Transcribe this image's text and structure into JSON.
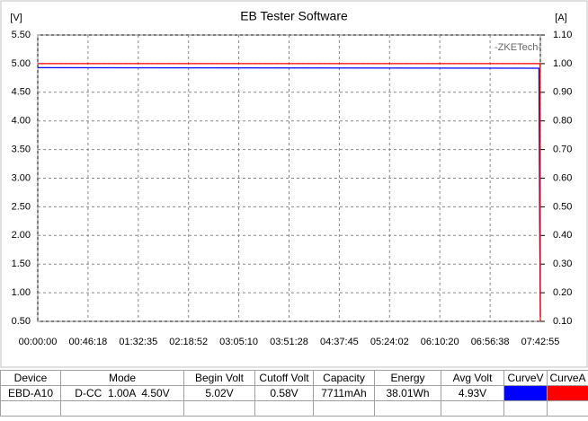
{
  "chart_data": {
    "type": "line",
    "title": "EB Tester Software",
    "y_label": "[V]",
    "y2_label": "[A]",
    "annotation": "-ZKETech-",
    "xlim": [
      0,
      27775
    ],
    "xticks": [
      {
        "value": 0,
        "label": "00:00:00"
      },
      {
        "value": 2778,
        "label": "00:46:18"
      },
      {
        "value": 5555,
        "label": "01:32:35"
      },
      {
        "value": 8332,
        "label": "02:18:52"
      },
      {
        "value": 11110,
        "label": "03:05:10"
      },
      {
        "value": 13888,
        "label": "03:51:28"
      },
      {
        "value": 16665,
        "label": "04:37:45"
      },
      {
        "value": 19442,
        "label": "05:24:02"
      },
      {
        "value": 22220,
        "label": "06:10:20"
      },
      {
        "value": 24998,
        "label": "06:56:38"
      },
      {
        "value": 27775,
        "label": "07:42:55"
      }
    ],
    "ylim": [
      0.5,
      5.5
    ],
    "yticks": [
      {
        "value": 0.5,
        "label": "0.50"
      },
      {
        "value": 1,
        "label": "1.00"
      },
      {
        "value": 1.5,
        "label": "1.50"
      },
      {
        "value": 2,
        "label": "2.00"
      },
      {
        "value": 2.5,
        "label": "2.50"
      },
      {
        "value": 3,
        "label": "3.00"
      },
      {
        "value": 3.5,
        "label": "3.50"
      },
      {
        "value": 4,
        "label": "4.00"
      },
      {
        "value": 4.5,
        "label": "4.50"
      },
      {
        "value": 5,
        "label": "5.00"
      },
      {
        "value": 5.5,
        "label": "5.50"
      }
    ],
    "y2lim": [
      0.1,
      1.1
    ],
    "y2ticks": [
      {
        "value": 0.1,
        "label": "0.10"
      },
      {
        "value": 0.2,
        "label": "0.20"
      },
      {
        "value": 0.3,
        "label": "0.30"
      },
      {
        "value": 0.4,
        "label": "0.40"
      },
      {
        "value": 0.5,
        "label": "0.50"
      },
      {
        "value": 0.6,
        "label": "0.60"
      },
      {
        "value": 0.7,
        "label": "0.70"
      },
      {
        "value": 0.8,
        "label": "0.80"
      },
      {
        "value": 0.9,
        "label": "0.90"
      },
      {
        "value": 1,
        "label": "1.00"
      },
      {
        "value": 1.1,
        "label": "1.10"
      }
    ],
    "grid": true,
    "series": [
      {
        "name": "CurveV",
        "color": "#0000ff",
        "x": [
          0,
          27700,
          27740,
          27775
        ],
        "values": [
          4.93,
          4.92,
          2.2,
          0.58
        ]
      },
      {
        "name": "CurveA",
        "color": "#ff0000",
        "axis": "y2",
        "x": [
          0,
          27760,
          27775
        ],
        "values": [
          1.0,
          1.0,
          0.1
        ]
      }
    ]
  },
  "table": {
    "headers": [
      "Device",
      "Mode",
      "Begin Volt",
      "Cutoff Volt",
      "Capacity",
      "Energy",
      "Avg Volt",
      "CurveV",
      "CurveA"
    ],
    "rows": [
      [
        "EBD-A10",
        "D-CC  1.00A  4.50V",
        "5.02V",
        "0.58V",
        "7711mAh",
        "38.01Wh",
        "4.93V"
      ]
    ]
  }
}
